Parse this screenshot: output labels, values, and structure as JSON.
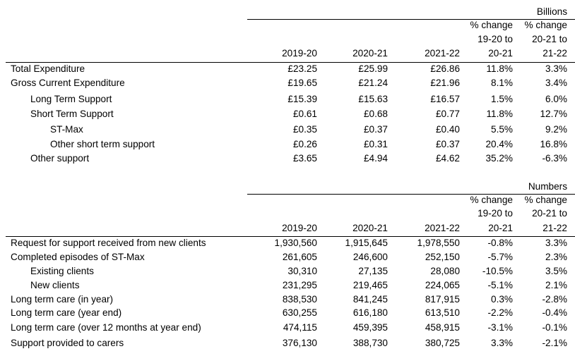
{
  "table1": {
    "unit": "Billions",
    "header": {
      "c1": "2019-20",
      "c2": "2020-21",
      "c3": "2021-22",
      "c4": [
        "% change",
        "19-20 to",
        "20-21"
      ],
      "c5": [
        "% change",
        "20-21 to",
        "21-22"
      ]
    },
    "rows": [
      {
        "label": "Total Expenditure",
        "v1": "£23.25",
        "v2": "£25.99",
        "v3": "£26.86",
        "v4": "11.8%",
        "v5": "3.3%"
      },
      {
        "label": "Gross Current Expenditure",
        "v1": "£19.65",
        "v2": "£21.24",
        "v3": "£21.96",
        "v4": "8.1%",
        "v5": "3.4%"
      },
      {
        "label": "Long Term Support",
        "v1": "£15.39",
        "v2": "£15.63",
        "v3": "£16.57",
        "v4": "1.5%",
        "v5": "6.0%"
      },
      {
        "label": "Short Term Support",
        "v1": "£0.61",
        "v2": "£0.68",
        "v3": "£0.77",
        "v4": "11.8%",
        "v5": "12.7%"
      },
      {
        "label": "ST-Max",
        "v1": "£0.35",
        "v2": "£0.37",
        "v3": "£0.40",
        "v4": "5.5%",
        "v5": "9.2%"
      },
      {
        "label": "Other short term support",
        "v1": "£0.26",
        "v2": "£0.31",
        "v3": "£0.37",
        "v4": "20.4%",
        "v5": "16.8%"
      },
      {
        "label": "Other support",
        "v1": "£3.65",
        "v2": "£4.94",
        "v3": "£4.62",
        "v4": "35.2%",
        "v5": "-6.3%"
      }
    ]
  },
  "table2": {
    "unit": "Numbers",
    "header": {
      "c1": "2019-20",
      "c2": "2020-21",
      "c3": "2021-22",
      "c4": [
        "% change",
        "19-20 to",
        "20-21"
      ],
      "c5": [
        "% change",
        "20-21 to",
        "21-22"
      ]
    },
    "rows": [
      {
        "label": "Request for support received from new clients",
        "v1": "1,930,560",
        "v2": "1,915,645",
        "v3": "1,978,550",
        "v4": "-0.8%",
        "v5": "3.3%"
      },
      {
        "label": "Completed episodes of ST-Max",
        "v1": "261,605",
        "v2": "246,600",
        "v3": "252,150",
        "v4": "-5.7%",
        "v5": "2.3%"
      },
      {
        "label": "Existing clients",
        "v1": "30,310",
        "v2": "27,135",
        "v3": "28,080",
        "v4": "-10.5%",
        "v5": "3.5%"
      },
      {
        "label": "New clients",
        "v1": "231,295",
        "v2": "219,465",
        "v3": "224,065",
        "v4": "-5.1%",
        "v5": "2.1%"
      },
      {
        "label": "Long term care (in year)",
        "v1": "838,530",
        "v2": "841,245",
        "v3": "817,915",
        "v4": "0.3%",
        "v5": "-2.8%"
      },
      {
        "label": "Long term care (year end)",
        "v1": "630,255",
        "v2": "616,180",
        "v3": "613,510",
        "v4": "-2.2%",
        "v5": "-0.4%"
      },
      {
        "label": "Long term care (over 12 months at year end)",
        "v1": "474,115",
        "v2": "459,395",
        "v3": "458,915",
        "v4": "-3.1%",
        "v5": "-0.1%"
      },
      {
        "label": "Support provided to carers",
        "v1": "376,130",
        "v2": "388,730",
        "v3": "380,725",
        "v4": "3.3%",
        "v5": "-2.1%"
      }
    ]
  }
}
